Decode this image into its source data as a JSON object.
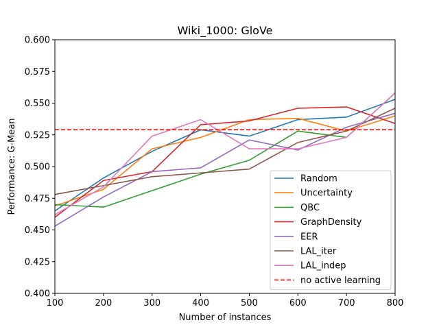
{
  "chart_data": {
    "type": "line",
    "title": "Wiki_1000: GloVe",
    "xlabel": "Number of instances",
    "ylabel": "Performance: G-Mean",
    "xlim": [
      100,
      800
    ],
    "ylim": [
      0.4,
      0.6
    ],
    "xticks": [
      100,
      200,
      300,
      400,
      500,
      600,
      700,
      800
    ],
    "yticks": [
      0.4,
      0.425,
      0.45,
      0.475,
      0.5,
      0.525,
      0.55,
      0.575,
      0.6
    ],
    "xtick_labels": [
      "100",
      "200",
      "300",
      "400",
      "500",
      "600",
      "700",
      "800"
    ],
    "ytick_labels": [
      "0.400",
      "0.425",
      "0.450",
      "0.475",
      "0.500",
      "0.525",
      "0.550",
      "0.575",
      "0.600"
    ],
    "grid": false,
    "legend_position": "lower-right",
    "x": [
      100,
      200,
      300,
      400,
      500,
      600,
      700,
      800
    ],
    "series": [
      {
        "name": "Random",
        "color": "#1f77b4",
        "style": "solid",
        "values": [
          0.465,
          0.491,
          0.512,
          0.529,
          0.524,
          0.537,
          0.539,
          0.553
        ]
      },
      {
        "name": "Uncertainty",
        "color": "#ff7f0e",
        "style": "solid",
        "values": [
          0.469,
          0.482,
          0.514,
          0.523,
          0.537,
          0.538,
          0.528,
          0.54
        ]
      },
      {
        "name": "QBC",
        "color": "#2ca02c",
        "style": "solid",
        "values": [
          0.47,
          0.468,
          0.481,
          0.494,
          0.505,
          0.528,
          0.523,
          0.558
        ]
      },
      {
        "name": "GraphDensity",
        "color": "#d62728",
        "style": "solid",
        "values": [
          0.46,
          0.489,
          0.496,
          0.533,
          0.536,
          0.546,
          0.547,
          0.534
        ]
      },
      {
        "name": "EER",
        "color": "#9467bd",
        "style": "solid",
        "values": [
          0.453,
          0.476,
          0.496,
          0.499,
          0.521,
          0.513,
          0.531,
          0.542
        ]
      },
      {
        "name": "LAL_iter",
        "color": "#8c564b",
        "style": "solid",
        "values": [
          0.478,
          0.485,
          0.492,
          0.495,
          0.498,
          0.519,
          0.528,
          0.546
        ]
      },
      {
        "name": "LAL_indep",
        "color": "#e377c2",
        "style": "solid",
        "values": [
          0.462,
          0.484,
          0.524,
          0.537,
          0.514,
          0.514,
          0.523,
          0.558
        ]
      },
      {
        "name": "no active learning",
        "color": "#ff0000",
        "style": "dashed",
        "values": [
          0.529,
          0.529,
          0.529,
          0.529,
          0.529,
          0.529,
          0.529,
          0.529
        ]
      }
    ]
  }
}
